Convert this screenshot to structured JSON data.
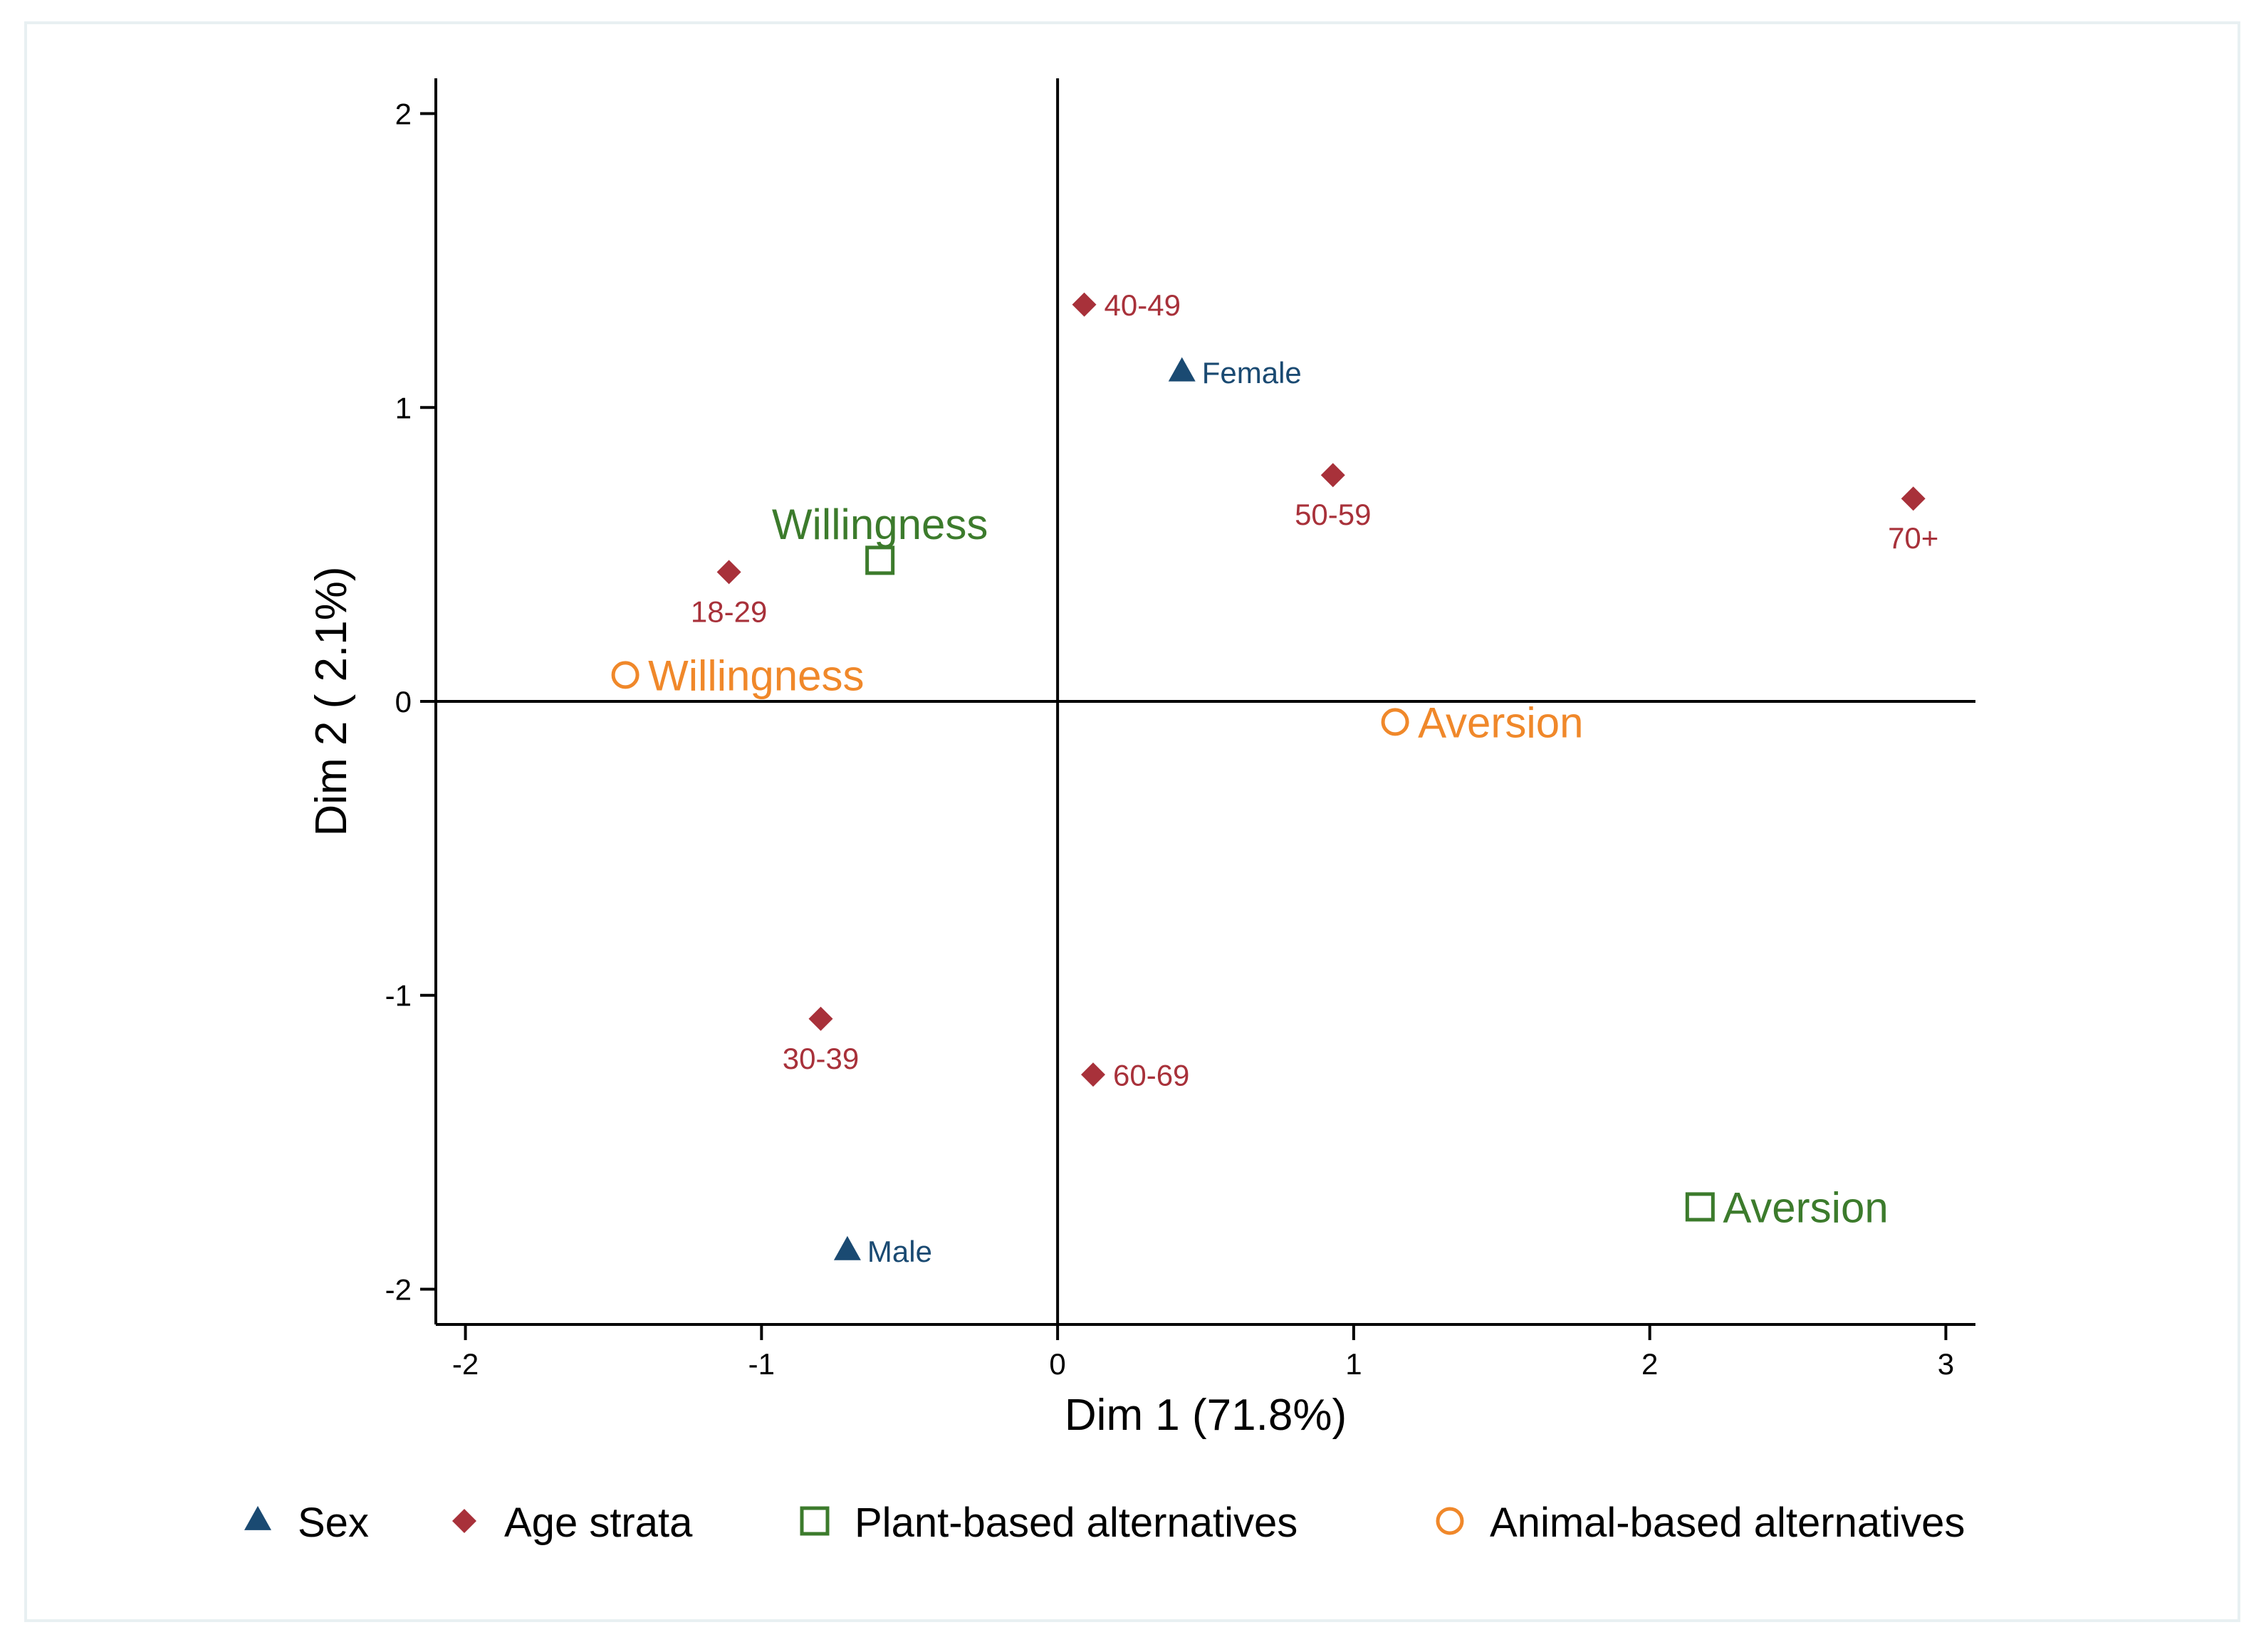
{
  "chart_data": {
    "type": "scatter",
    "title": "",
    "xlabel": "Dim 1 (71.8%)",
    "ylabel": "Dim 2 ( 2.1%)",
    "xlim": [
      -2.1,
      3.1
    ],
    "ylim": [
      -2.12,
      2.12
    ],
    "xticks": [
      -2,
      -1,
      0,
      1,
      2,
      3
    ],
    "yticks": [
      -2,
      -1,
      0,
      1,
      2
    ],
    "xtick_labels": [
      "-2",
      "-1",
      "0",
      "1",
      "2",
      "3"
    ],
    "ytick_labels": [
      "-2",
      "-1",
      "0",
      "1",
      "2"
    ],
    "reference_lines": {
      "x": 0,
      "y": 0
    },
    "grid": false,
    "legend_position": "bottom",
    "series": [
      {
        "name": "Sex",
        "marker": "triangle",
        "color": "#1a4a72",
        "label_size": "small",
        "points": [
          {
            "label": "Female",
            "x": 0.42,
            "y": 1.12,
            "label_position": "right"
          },
          {
            "label": "Male",
            "x": -0.71,
            "y": -1.87,
            "label_position": "right"
          }
        ]
      },
      {
        "name": "Age strata",
        "marker": "diamond",
        "color": "#a8313a",
        "label_size": "small",
        "points": [
          {
            "label": "40-49",
            "x": 0.09,
            "y": 1.35,
            "label_position": "right"
          },
          {
            "label": "50-59",
            "x": 0.93,
            "y": 0.77,
            "label_position": "below"
          },
          {
            "label": "70+",
            "x": 2.89,
            "y": 0.69,
            "label_position": "below"
          },
          {
            "label": "18-29",
            "x": -1.11,
            "y": 0.44,
            "label_position": "below"
          },
          {
            "label": "30-39",
            "x": -0.8,
            "y": -1.08,
            "label_position": "below"
          },
          {
            "label": "60-69",
            "x": 0.12,
            "y": -1.27,
            "label_position": "right"
          }
        ]
      },
      {
        "name": "Plant-based alternatives",
        "marker": "square-open",
        "color": "#3c7b2c",
        "label_size": "large",
        "points": [
          {
            "label": "Willingness",
            "x": -0.6,
            "y": 0.48,
            "label_position": "above"
          },
          {
            "label": "Aversion",
            "x": 2.17,
            "y": -1.72,
            "label_position": "right"
          }
        ]
      },
      {
        "name": "Animal-based alternatives",
        "marker": "circle-open",
        "color": "#f0882a",
        "label_size": "large",
        "points": [
          {
            "label": "Willingness",
            "x": -1.46,
            "y": 0.09,
            "label_position": "right"
          },
          {
            "label": "Aversion",
            "x": 1.14,
            "y": -0.07,
            "label_position": "right"
          }
        ]
      }
    ]
  }
}
